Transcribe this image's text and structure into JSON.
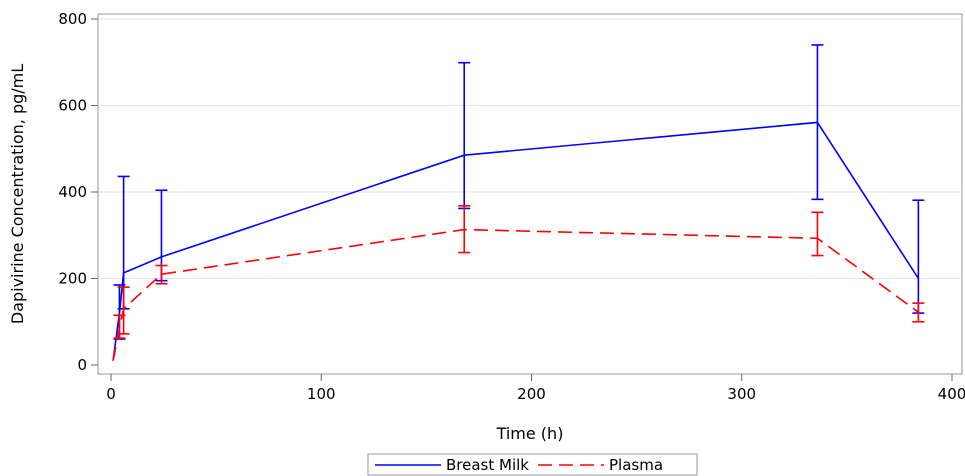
{
  "chart_data": {
    "type": "line",
    "xlabel": "Time (h)",
    "ylabel": "Dapivirine Concentration, pg/mL",
    "xlim": [
      0,
      400
    ],
    "ylim": [
      0,
      800
    ],
    "x_ticks": [
      0,
      100,
      200,
      300,
      400
    ],
    "y_ticks": [
      0,
      200,
      400,
      600,
      800
    ],
    "grid": "horizontal",
    "legend_position": "bottom",
    "series": [
      {
        "name": "Breast Milk",
        "color": "#0000ff",
        "line_style": "solid",
        "points": [
          {
            "x": 1,
            "y": 10,
            "lower": null,
            "upper": null
          },
          {
            "x": 4,
            "y": 120,
            "lower": 60,
            "upper": 185
          },
          {
            "x": 6,
            "y": 213,
            "lower": 130,
            "upper": 436
          },
          {
            "x": 24,
            "y": 250,
            "lower": 195,
            "upper": 404
          },
          {
            "x": 168,
            "y": 485,
            "lower": 362,
            "upper": 699
          },
          {
            "x": 336,
            "y": 561,
            "lower": 383,
            "upper": 740
          },
          {
            "x": 384,
            "y": 200,
            "lower": 120,
            "upper": 381
          }
        ]
      },
      {
        "name": "Plasma",
        "color": "#ff0000",
        "line_style": "dashed",
        "points": [
          {
            "x": 1,
            "y": 10,
            "lower": null,
            "upper": null
          },
          {
            "x": 4,
            "y": 85,
            "lower": 62,
            "upper": 115
          },
          {
            "x": 6,
            "y": 130,
            "lower": 72,
            "upper": 180
          },
          {
            "x": 24,
            "y": 210,
            "lower": 188,
            "upper": 230
          },
          {
            "x": 168,
            "y": 313,
            "lower": 260,
            "upper": 368
          },
          {
            "x": 336,
            "y": 293,
            "lower": 253,
            "upper": 353
          },
          {
            "x": 384,
            "y": 122,
            "lower": 100,
            "upper": 143
          }
        ]
      }
    ]
  }
}
